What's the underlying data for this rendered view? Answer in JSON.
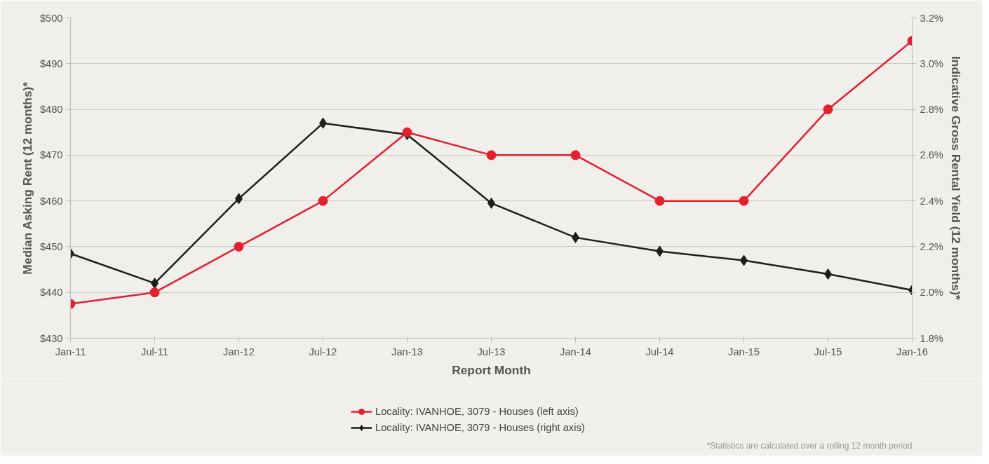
{
  "chart_data": {
    "type": "line",
    "xlabel": "Report Month",
    "ylabel": "Median Asking Rent (12 months)*",
    "y2label": "Indicative Gross Rental Yield (12 months)*",
    "categories": [
      "Jan-11",
      "Jul-11",
      "Jan-12",
      "Jul-12",
      "Jan-13",
      "Jul-13",
      "Jan-14",
      "Jul-14",
      "Jan-15",
      "Jul-15",
      "Jan-16"
    ],
    "series": [
      {
        "name": "Locality: IVANHOE, 3079 - Houses (left axis)",
        "color": "#e3202e",
        "marker": "circle",
        "values": [
          437.5,
          440,
          450,
          460,
          475,
          470,
          470,
          460,
          460,
          480,
          495
        ]
      },
      {
        "name": "Locality: IVANHOE, 3079 - Houses (right axis)",
        "color": "#1e1e1e",
        "marker": "diamond",
        "axis": "y2",
        "values": [
          2.17,
          2.04,
          2.41,
          2.74,
          2.69,
          2.39,
          2.24,
          2.18,
          2.14,
          2.08,
          2.01
        ]
      }
    ],
    "ylim": [
      430,
      500
    ],
    "yticks": [
      {
        "value": 430,
        "label": "$430"
      },
      {
        "value": 440,
        "label": "$440"
      },
      {
        "value": 450,
        "label": "$450"
      },
      {
        "value": 460,
        "label": "$460"
      },
      {
        "value": 470,
        "label": "$470"
      },
      {
        "value": 480,
        "label": "$480"
      },
      {
        "value": 490,
        "label": "$490"
      },
      {
        "value": 500,
        "label": "$500"
      }
    ],
    "y2lim": [
      1.8,
      3.2
    ],
    "y2ticks": [
      {
        "value": 1.8,
        "label": "1.8%"
      },
      {
        "value": 2.0,
        "label": "2.0%"
      },
      {
        "value": 2.2,
        "label": "2.2%"
      },
      {
        "value": 2.4,
        "label": "2.4%"
      },
      {
        "value": 2.6,
        "label": "2.6%"
      },
      {
        "value": 2.8,
        "label": "2.8%"
      },
      {
        "value": 3.0,
        "label": "3.0%"
      },
      {
        "value": 3.2,
        "label": "3.2%"
      }
    ],
    "grid": "y",
    "legend": "bottom",
    "line_style": "solid",
    "annotations": [
      "*Statistics are calculated over a rolling 12 month period"
    ]
  }
}
